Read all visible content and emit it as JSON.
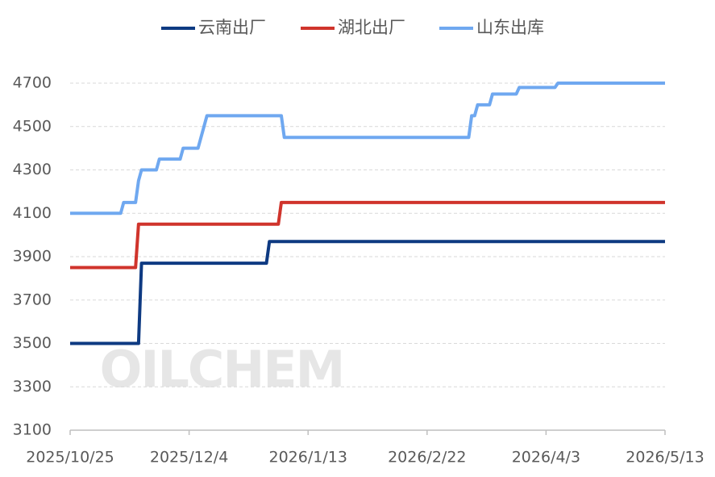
{
  "chart_data": {
    "type": "line",
    "watermark": "OILCHEM",
    "xlim": [
      "2025/10/25",
      "2026/5/13"
    ],
    "xticks": [
      "2025/10/25",
      "2025/12/4",
      "2026/1/13",
      "2026/2/22",
      "2026/4/3",
      "2026/5/13"
    ],
    "ylim": [
      3100,
      4700
    ],
    "yticks": [
      3100,
      3300,
      3500,
      3700,
      3900,
      4100,
      4300,
      4500,
      4700
    ],
    "grid": true,
    "legend": "top",
    "series": [
      {
        "name": "云南出厂",
        "color": "#0e3a82",
        "x": [
          "2025/10/25",
          "2025/11/17",
          "2025/11/18",
          "2025/12/30",
          "2025/12/31",
          "2026/5/13"
        ],
        "values": [
          3500,
          3500,
          3870,
          3870,
          3970,
          3970
        ]
      },
      {
        "name": "湖北出厂",
        "color": "#d0342c",
        "x": [
          "2025/10/25",
          "2025/11/16",
          "2025/11/17",
          "2026/1/3",
          "2026/1/4",
          "2026/5/13"
        ],
        "values": [
          3850,
          3850,
          4050,
          4050,
          4150,
          4150
        ]
      },
      {
        "name": "山东出库",
        "color": "#6fa8f0",
        "x": [
          "2025/10/25",
          "2025/11/11",
          "2025/11/12",
          "2025/11/16",
          "2025/11/17",
          "2025/11/18",
          "2025/11/23",
          "2025/11/24",
          "2025/12/1",
          "2025/12/2",
          "2025/12/7",
          "2025/12/10",
          "2026/1/4",
          "2026/1/5",
          "2026/3/8",
          "2026/3/9",
          "2026/3/10",
          "2026/3/11",
          "2026/3/15",
          "2026/3/16",
          "2026/3/24",
          "2026/3/25",
          "2026/4/6",
          "2026/4/7",
          "2026/5/13"
        ],
        "values": [
          4100,
          4100,
          4150,
          4150,
          4250,
          4300,
          4300,
          4350,
          4350,
          4400,
          4400,
          4550,
          4550,
          4450,
          4450,
          4550,
          4550,
          4600,
          4600,
          4650,
          4650,
          4680,
          4680,
          4700,
          4700
        ]
      }
    ]
  }
}
